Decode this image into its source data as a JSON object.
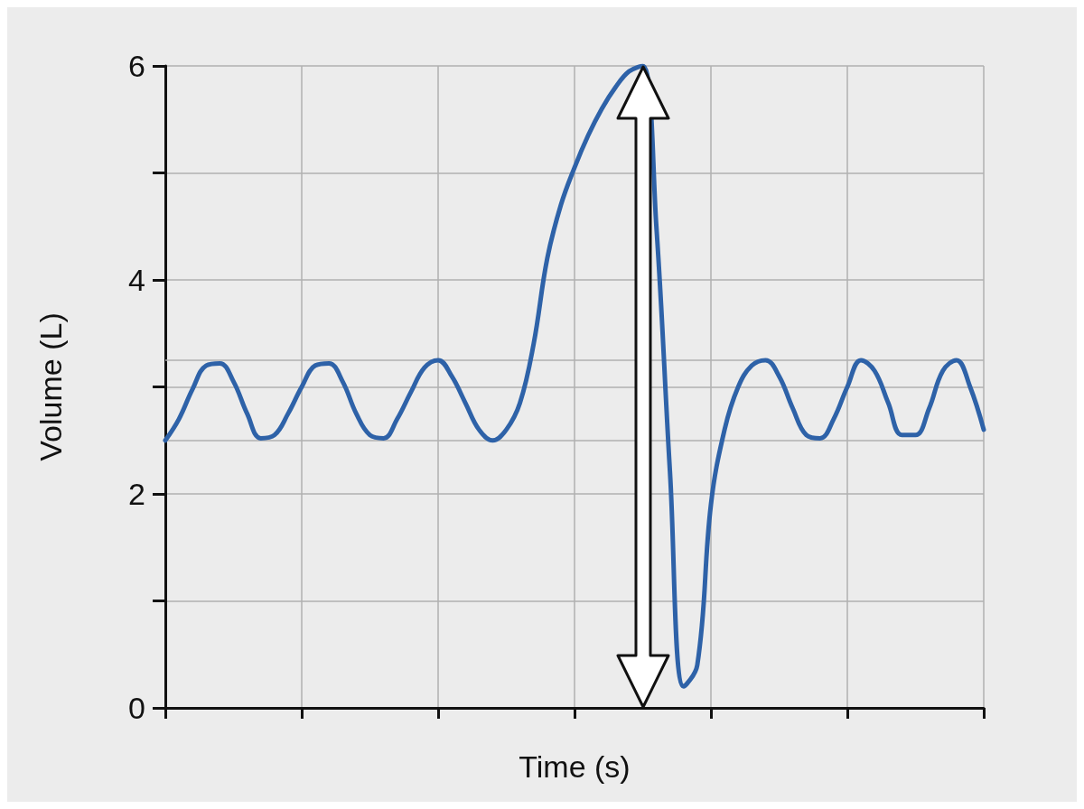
{
  "chart_data": {
    "type": "line",
    "xlabel": "Time (s)",
    "ylabel": "Volume (L)",
    "categories": [
      null,
      null,
      null,
      null,
      null,
      null,
      null,
      null,
      null,
      null,
      null,
      null,
      null,
      null,
      null,
      null,
      null,
      null,
      null,
      null,
      null,
      null,
      null,
      null,
      null,
      null,
      null,
      null,
      null,
      null,
      null,
      null,
      null,
      null,
      null,
      null,
      null,
      null,
      null,
      null,
      null,
      null,
      null,
      null,
      null,
      null,
      null,
      null,
      null,
      null,
      null,
      null,
      null,
      null,
      null,
      null,
      null,
      null,
      null,
      null,
      null
    ],
    "series": [
      {
        "color": "#2e62a8",
        "values": [
          2.5,
          2.7,
          2.98,
          3.2,
          3.22,
          3.05,
          2.75,
          2.52,
          2.55,
          2.75,
          3.0,
          3.2,
          3.22,
          3.05,
          2.75,
          2.55,
          2.52,
          2.7,
          2.95,
          3.18,
          3.25,
          3.1,
          2.85,
          2.6,
          2.5,
          2.6,
          2.85,
          3.4,
          4.2,
          4.7,
          5.05,
          5.35,
          5.6,
          5.8,
          5.95,
          6.0,
          4.5,
          2.2,
          0.2,
          0.4,
          1.9,
          2.6,
          3.0,
          3.2,
          3.25,
          3.1,
          2.8,
          2.55,
          2.52,
          2.7,
          3.0,
          3.25,
          3.15,
          2.85,
          2.55,
          2.55,
          2.8,
          3.15,
          3.25,
          3.0,
          2.6
        ]
      }
    ],
    "ylim": [
      0,
      6
    ],
    "yticks": [
      0,
      {
        "value": 1,
        "label": null
      },
      2,
      {
        "value": 3,
        "label": null
      },
      4,
      {
        "value": 5,
        "label": null
      },
      6
    ],
    "ref_lines": [
      {
        "axis": "y",
        "value": 2.5,
        "color": "#b0b0b0"
      },
      {
        "axis": "y",
        "value": 3.25,
        "color": "#b0b0b0"
      }
    ],
    "grid": true,
    "marker": "none",
    "line_style": "solid"
  }
}
